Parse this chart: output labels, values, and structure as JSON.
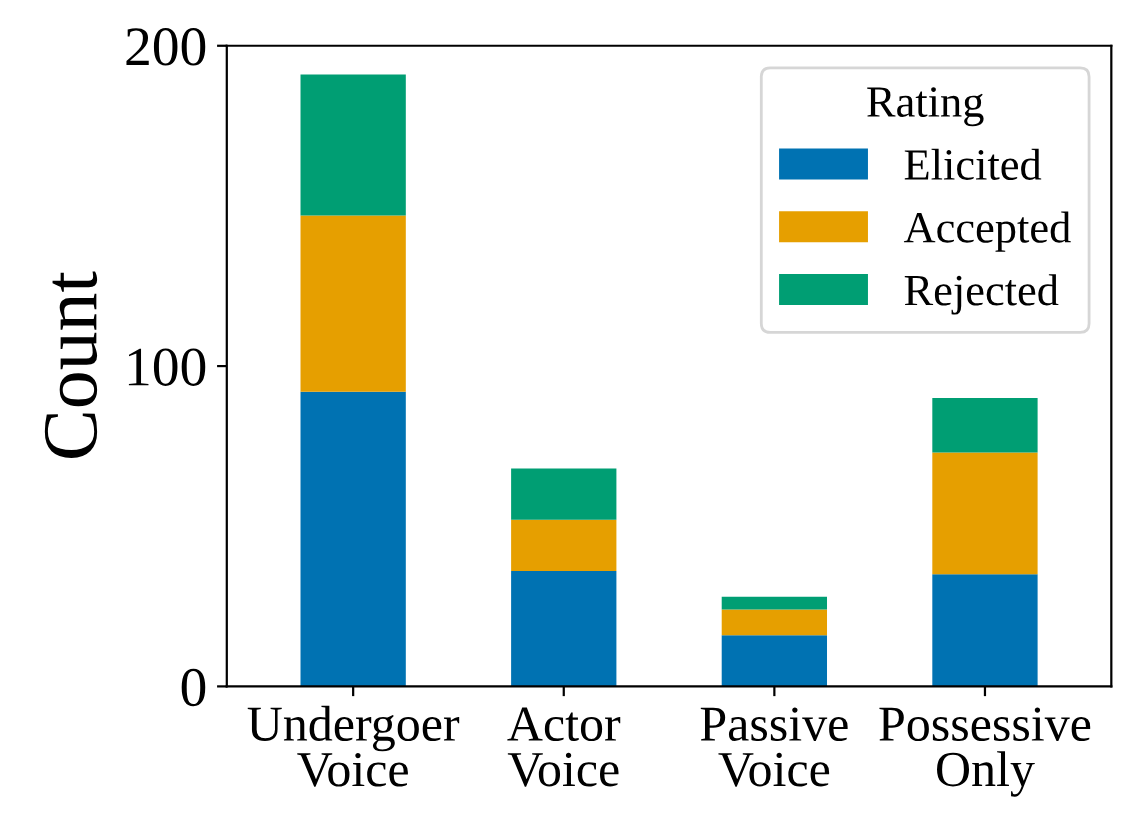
{
  "chart_data": {
    "type": "bar",
    "stacked": true,
    "ylabel": "Count",
    "legend_title": "Rating",
    "legend": "top right",
    "categories": [
      "Undergoer\nVoice",
      "Actor\nVoice",
      "Passive\nVoice",
      "Possessive\nOnly"
    ],
    "series": [
      {
        "name": "Elicited",
        "color": "#0072b2",
        "values": [
          92,
          36,
          16,
          35
        ]
      },
      {
        "name": "Accepted",
        "color": "#e69f00",
        "values": [
          55,
          16,
          8,
          38
        ]
      },
      {
        "name": "Rejected",
        "color": "#009e73",
        "values": [
          44,
          16,
          4,
          17
        ]
      }
    ],
    "ylim": [
      0,
      200
    ],
    "yticks": [
      0,
      100,
      200
    ],
    "grid": false
  }
}
